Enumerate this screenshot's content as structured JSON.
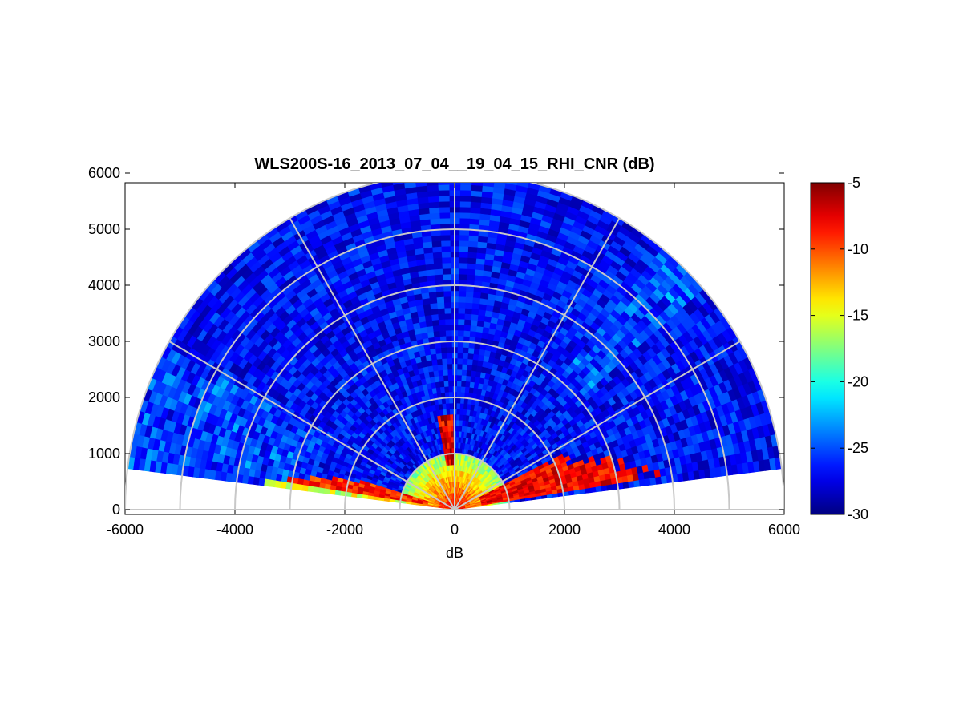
{
  "chart_data": {
    "type": "heatmap",
    "subtype": "polar-rhi-sector",
    "title": "WLS200S-16_2013_07_04__19_04_15_RHI_CNR (dB)",
    "xlabel": "dB",
    "ylabel": "",
    "xlim": [
      -6000,
      6000
    ],
    "ylim": [
      0,
      6000
    ],
    "xticks": [
      -6000,
      -4000,
      -2000,
      0,
      2000,
      4000,
      6000
    ],
    "yticks": [
      0,
      1000,
      2000,
      3000,
      4000,
      5000,
      6000
    ],
    "range_rings": [
      1000,
      2000,
      3000,
      4000,
      5000,
      6000
    ],
    "radial_line_angles_deg": [
      30,
      60,
      90,
      120,
      150
    ],
    "max_range": 6000,
    "elevation_min_deg": 7,
    "elevation_max_deg": 173,
    "colormap": "jet",
    "colorbar": {
      "min": -30,
      "max": -5,
      "ticks": [
        -5,
        -10,
        -15,
        -20,
        -25,
        -30
      ]
    },
    "field_summary": {
      "background_dB": -27,
      "boundary_layer_top_range_m": 1000,
      "boundary_layer_dB": -15,
      "strong_returns_dB": -6,
      "aerosol_plume_azimuth_deg": 95,
      "aerosol_plume_range_m": [
        800,
        1600
      ],
      "strong_layer_right_ranges_m": [
        500,
        3400
      ],
      "strong_layer_right_elevations_deg": [
        8,
        25
      ],
      "strong_layer_left_ranges_m": [
        500,
        3700
      ],
      "strong_layer_left_elevations_deg": [
        163,
        172
      ]
    },
    "colors": {
      "ring": "#c8c8c8",
      "axes": "#000000",
      "colormap_low": "#00008f",
      "colormap_high": "#800000"
    }
  }
}
